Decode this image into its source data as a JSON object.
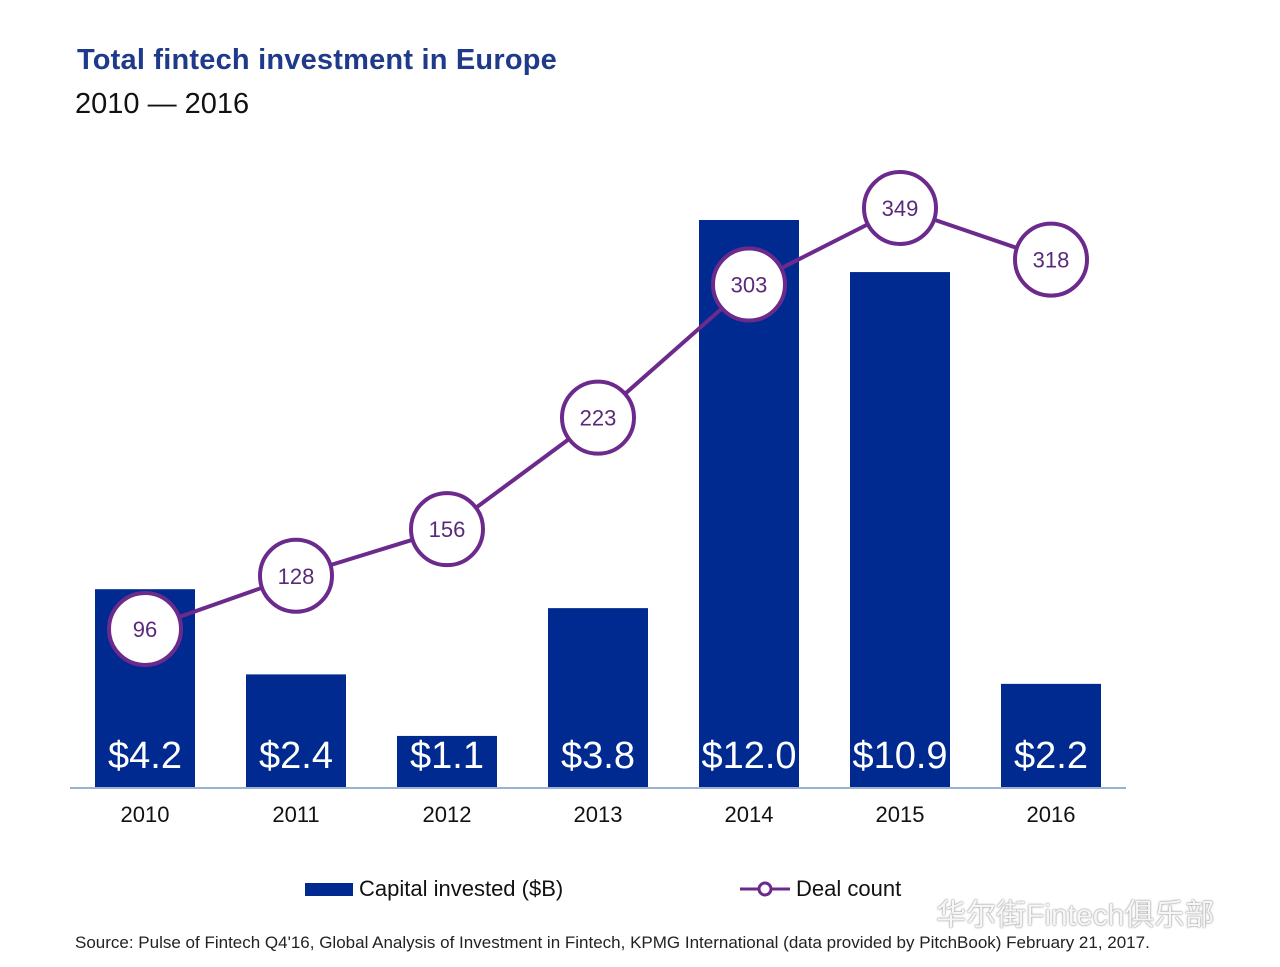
{
  "header": {
    "title": "Total fintech investment in Europe",
    "subtitle": "2010 — 2016"
  },
  "colors": {
    "bar": "#002a8f",
    "line": "#6b2a8c",
    "title": "#1f3a8a"
  },
  "chart_data": {
    "type": "bar",
    "title": "Total fintech investment in Europe",
    "subtitle": "2010 — 2016",
    "categories": [
      "2010",
      "2011",
      "2012",
      "2013",
      "2014",
      "2015",
      "2016"
    ],
    "series": [
      {
        "name": "Capital invested ($B)",
        "type": "bar",
        "values": [
          4.2,
          2.4,
          1.1,
          3.8,
          12.0,
          10.9,
          2.2
        ],
        "labels": [
          "$4.2",
          "$2.4",
          "$1.1",
          "$3.8",
          "$12.0",
          "$10.9",
          "$2.2"
        ]
      },
      {
        "name": "Deal count",
        "type": "line",
        "values": [
          96,
          128,
          156,
          223,
          303,
          349,
          318
        ]
      }
    ],
    "ylim_bar": [
      0,
      12.0
    ],
    "grid": false,
    "legend": "bottom"
  },
  "legend": {
    "capital": "Capital invested ($B)",
    "deals": "Deal count"
  },
  "watermark": "华尔街Fintech俱乐部",
  "source": "Source: Pulse of Fintech Q4'16, Global Analysis of Investment in Fintech, KPMG International (data provided by PitchBook) February 21, 2017."
}
